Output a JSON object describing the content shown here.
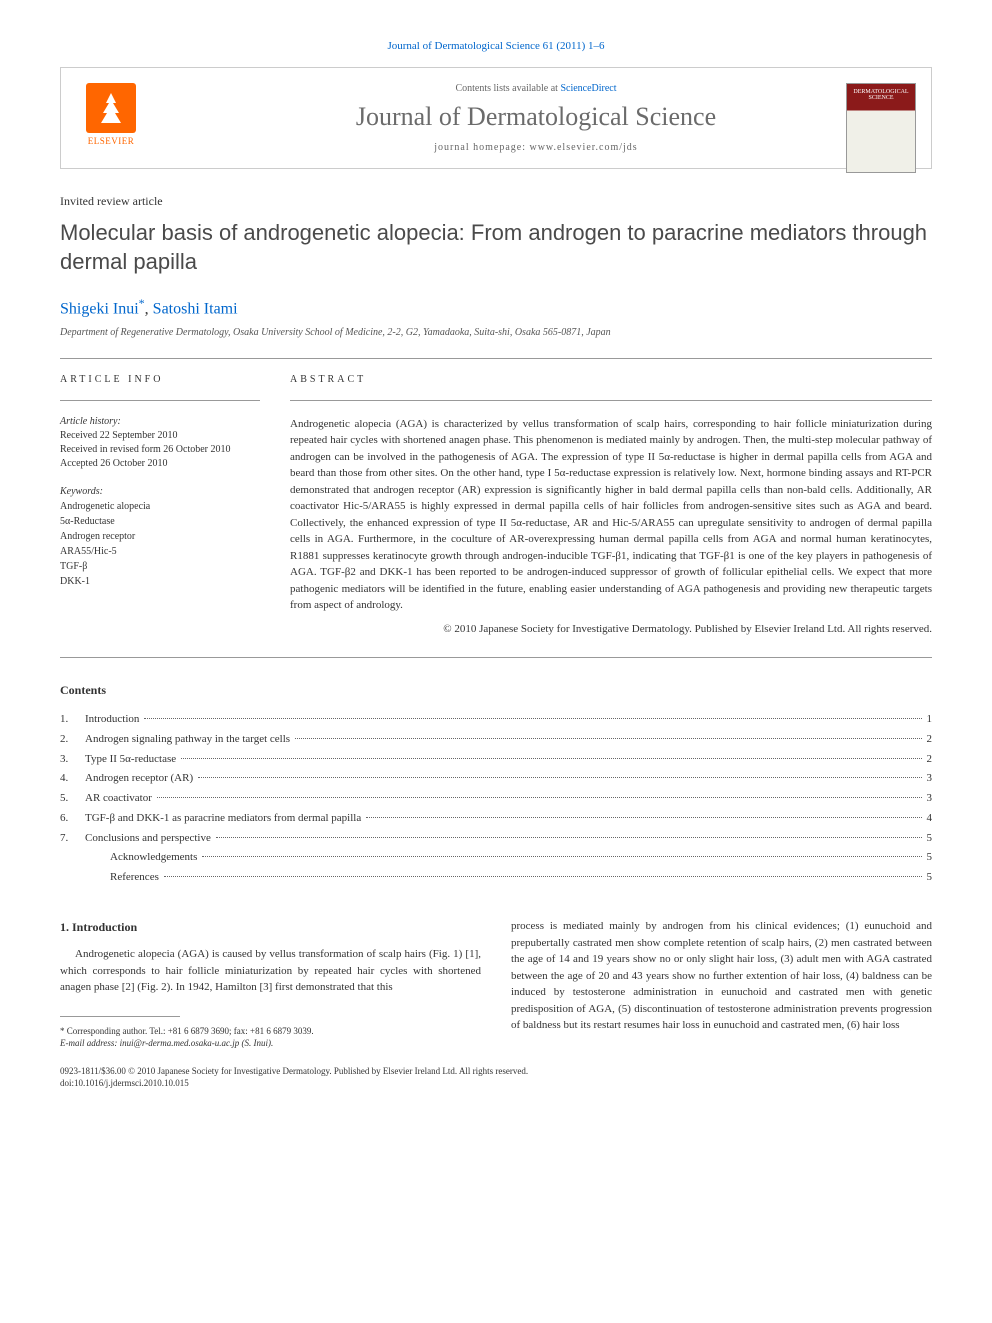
{
  "topCitation": "Journal of Dermatological Science 61 (2011) 1–6",
  "header": {
    "contentsLine": "Contents lists available at ",
    "scienceDirect": "ScienceDirect",
    "journalName": "Journal of Dermatological Science",
    "homepageLabel": "journal homepage: www.elsevier.com/jds",
    "elsevierLabel": "ELSEVIER",
    "coverText": "DERMATOLOGICAL SCIENCE"
  },
  "articleType": "Invited review article",
  "title": "Molecular basis of androgenetic alopecia: From androgen to paracrine mediators through dermal papilla",
  "authors": {
    "author1": "Shigeki Inui",
    "author2": "Satoshi Itami"
  },
  "affiliation": "Department of Regenerative Dermatology, Osaka University School of Medicine, 2-2, G2, Yamadaoka, Suita-shi, Osaka 565-0871, Japan",
  "articleInfo": {
    "headingInfo": "ARTICLE INFO",
    "historyLabel": "Article history:",
    "received": "Received 22 September 2010",
    "revisedForm": "Received in revised form 26 October 2010",
    "accepted": "Accepted 26 October 2010",
    "keywordsLabel": "Keywords:",
    "kw1": "Androgenetic alopecia",
    "kw2": "5α-Reductase",
    "kw3": "Androgen receptor",
    "kw4": "ARA55/Hic-5",
    "kw5": "TGF-β",
    "kw6": "DKK-1"
  },
  "abstract": {
    "heading": "ABSTRACT",
    "text": "Androgenetic alopecia (AGA) is characterized by vellus transformation of scalp hairs, corresponding to hair follicle miniaturization during repeated hair cycles with shortened anagen phase. This phenomenon is mediated mainly by androgen. Then, the multi-step molecular pathway of androgen can be involved in the pathogenesis of AGA. The expression of type II 5α-reductase is higher in dermal papilla cells from AGA and beard than those from other sites. On the other hand, type I 5α-reductase expression is relatively low. Next, hormone binding assays and RT-PCR demonstrated that androgen receptor (AR) expression is significantly higher in bald dermal papilla cells than non-bald cells. Additionally, AR coactivator Hic-5/ARA55 is highly expressed in dermal papilla cells of hair follicles from androgen-sensitive sites such as AGA and beard. Collectively, the enhanced expression of type II 5α-reductase, AR and Hic-5/ARA55 can upregulate sensitivity to androgen of dermal papilla cells in AGA. Furthermore, in the coculture of AR-overexpressing human dermal papilla cells from AGA and normal human keratinocytes, R1881 suppresses keratinocyte growth through androgen-inducible TGF-β1, indicating that TGF-β1 is one of the key players in pathogenesis of AGA. TGF-β2 and DKK-1 has been reported to be androgen-induced suppressor of growth of follicular epithelial cells. We expect that more pathogenic mediators will be identified in the future, enabling easier understanding of AGA pathogenesis and providing new therapeutic targets from aspect of andrology.",
    "copyright": "© 2010 Japanese Society for Investigative Dermatology. Published by Elsevier Ireland Ltd. All rights reserved."
  },
  "contents": {
    "heading": "Contents",
    "items": [
      {
        "num": "1.",
        "label": "Introduction",
        "page": "1"
      },
      {
        "num": "2.",
        "label": "Androgen signaling pathway in the target cells",
        "page": "2"
      },
      {
        "num": "3.",
        "label": "Type II 5α-reductase",
        "page": "2"
      },
      {
        "num": "4.",
        "label": "Androgen receptor (AR)",
        "page": "3"
      },
      {
        "num": "5.",
        "label": "AR coactivator",
        "page": "3"
      },
      {
        "num": "6.",
        "label": "TGF-β and DKK-1 as paracrine mediators from dermal papilla",
        "page": "4"
      },
      {
        "num": "7.",
        "label": "Conclusions and perspective",
        "page": "5"
      },
      {
        "num": "",
        "label": "Acknowledgements",
        "page": "5"
      },
      {
        "num": "",
        "label": "References",
        "page": "5"
      }
    ]
  },
  "body": {
    "section1Heading": "1. Introduction",
    "col1Text": "Androgenetic alopecia (AGA) is caused by vellus transformation of scalp hairs (Fig. 1) [1], which corresponds to hair follicle miniaturization by repeated hair cycles with shortened anagen phase [2] (Fig. 2). In 1942, Hamilton [3] first demonstrated that this",
    "col2Text": "process is mediated mainly by androgen from his clinical evidences; (1) eunuchoid and prepubertally castrated men show complete retention of scalp hairs, (2) men castrated between the age of 14 and 19 years show no or only slight hair loss, (3) adult men with AGA castrated between the age of 20 and 43 years show no further extention of hair loss, (4) baldness can be induced by testosterone administration in eunuchoid and castrated men with genetic predisposition of AGA, (5) discontinuation of testosterone administration prevents progression of baldness but its restart resumes hair loss in eunuchoid and castrated men, (6) hair loss"
  },
  "footnote": {
    "corresponding": "* Corresponding author. Tel.: +81 6 6879 3690; fax: +81 6 6879 3039.",
    "email": "E-mail address: inui@r-derma.med.osaka-u.ac.jp (S. Inui)."
  },
  "bottom": {
    "line1": "0923-1811/$36.00 © 2010 Japanese Society for Investigative Dermatology. Published by Elsevier Ireland Ltd. All rights reserved.",
    "line2": "doi:10.1016/j.jdermsci.2010.10.015"
  }
}
